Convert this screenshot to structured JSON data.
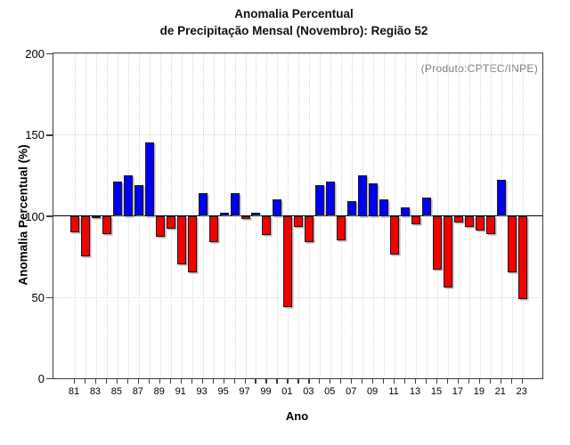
{
  "title": {
    "line1": "Anomalia Percentual",
    "line2": "de Precipitação Mensal (Novembro): Região 52"
  },
  "annotation": "(Produto:CPTEC/INPE)",
  "axes": {
    "y_label": "Anomalia Percentual (%)",
    "x_label": "Ano",
    "y_ticks": [
      0,
      50,
      100,
      150,
      200
    ],
    "x_labeled_years": [
      "81",
      "83",
      "85",
      "87",
      "89",
      "91",
      "93",
      "95",
      "97",
      "99",
      "01",
      "03",
      "05",
      "07",
      "09",
      "11",
      "13",
      "15",
      "17",
      "19",
      "21",
      "23"
    ]
  },
  "colors": {
    "above_baseline": "#0000f4",
    "below_baseline": "#f40000",
    "baseline_line": "#000000",
    "grid": "#d8d8d8",
    "annotation_text": "#7d7d7d"
  },
  "chart_data": {
    "type": "bar",
    "title": "Anomalia Percentual de Precipitação Mensal (Novembro): Região 52",
    "xlabel": "Ano",
    "ylabel": "Anomalia Percentual (%)",
    "ylim": [
      0,
      200
    ],
    "baseline": 100,
    "grid": "dotted, vertical every year, horizontal at 50 and 150, solid line at 100",
    "legend": "none",
    "categories": [
      "81",
      "82",
      "83",
      "84",
      "85",
      "86",
      "87",
      "88",
      "89",
      "90",
      "91",
      "92",
      "93",
      "94",
      "95",
      "96",
      "97",
      "98",
      "99",
      "00",
      "01",
      "02",
      "03",
      "04",
      "05",
      "06",
      "07",
      "08",
      "09",
      "10",
      "11",
      "12",
      "13",
      "14",
      "15",
      "16",
      "17",
      "18",
      "19",
      "20",
      "21",
      "22",
      "23"
    ],
    "values": [
      90,
      75,
      99,
      89,
      121,
      125,
      119,
      145,
      87,
      92,
      70,
      65,
      114,
      84,
      102,
      114,
      98,
      102,
      88,
      110,
      44,
      93,
      84,
      119,
      121,
      85,
      109,
      125,
      120,
      110,
      76,
      105,
      95,
      111,
      67,
      56,
      96,
      93,
      91,
      89,
      122,
      65,
      49
    ],
    "color_rule": "blue when value >= 100, red when value < 100"
  }
}
